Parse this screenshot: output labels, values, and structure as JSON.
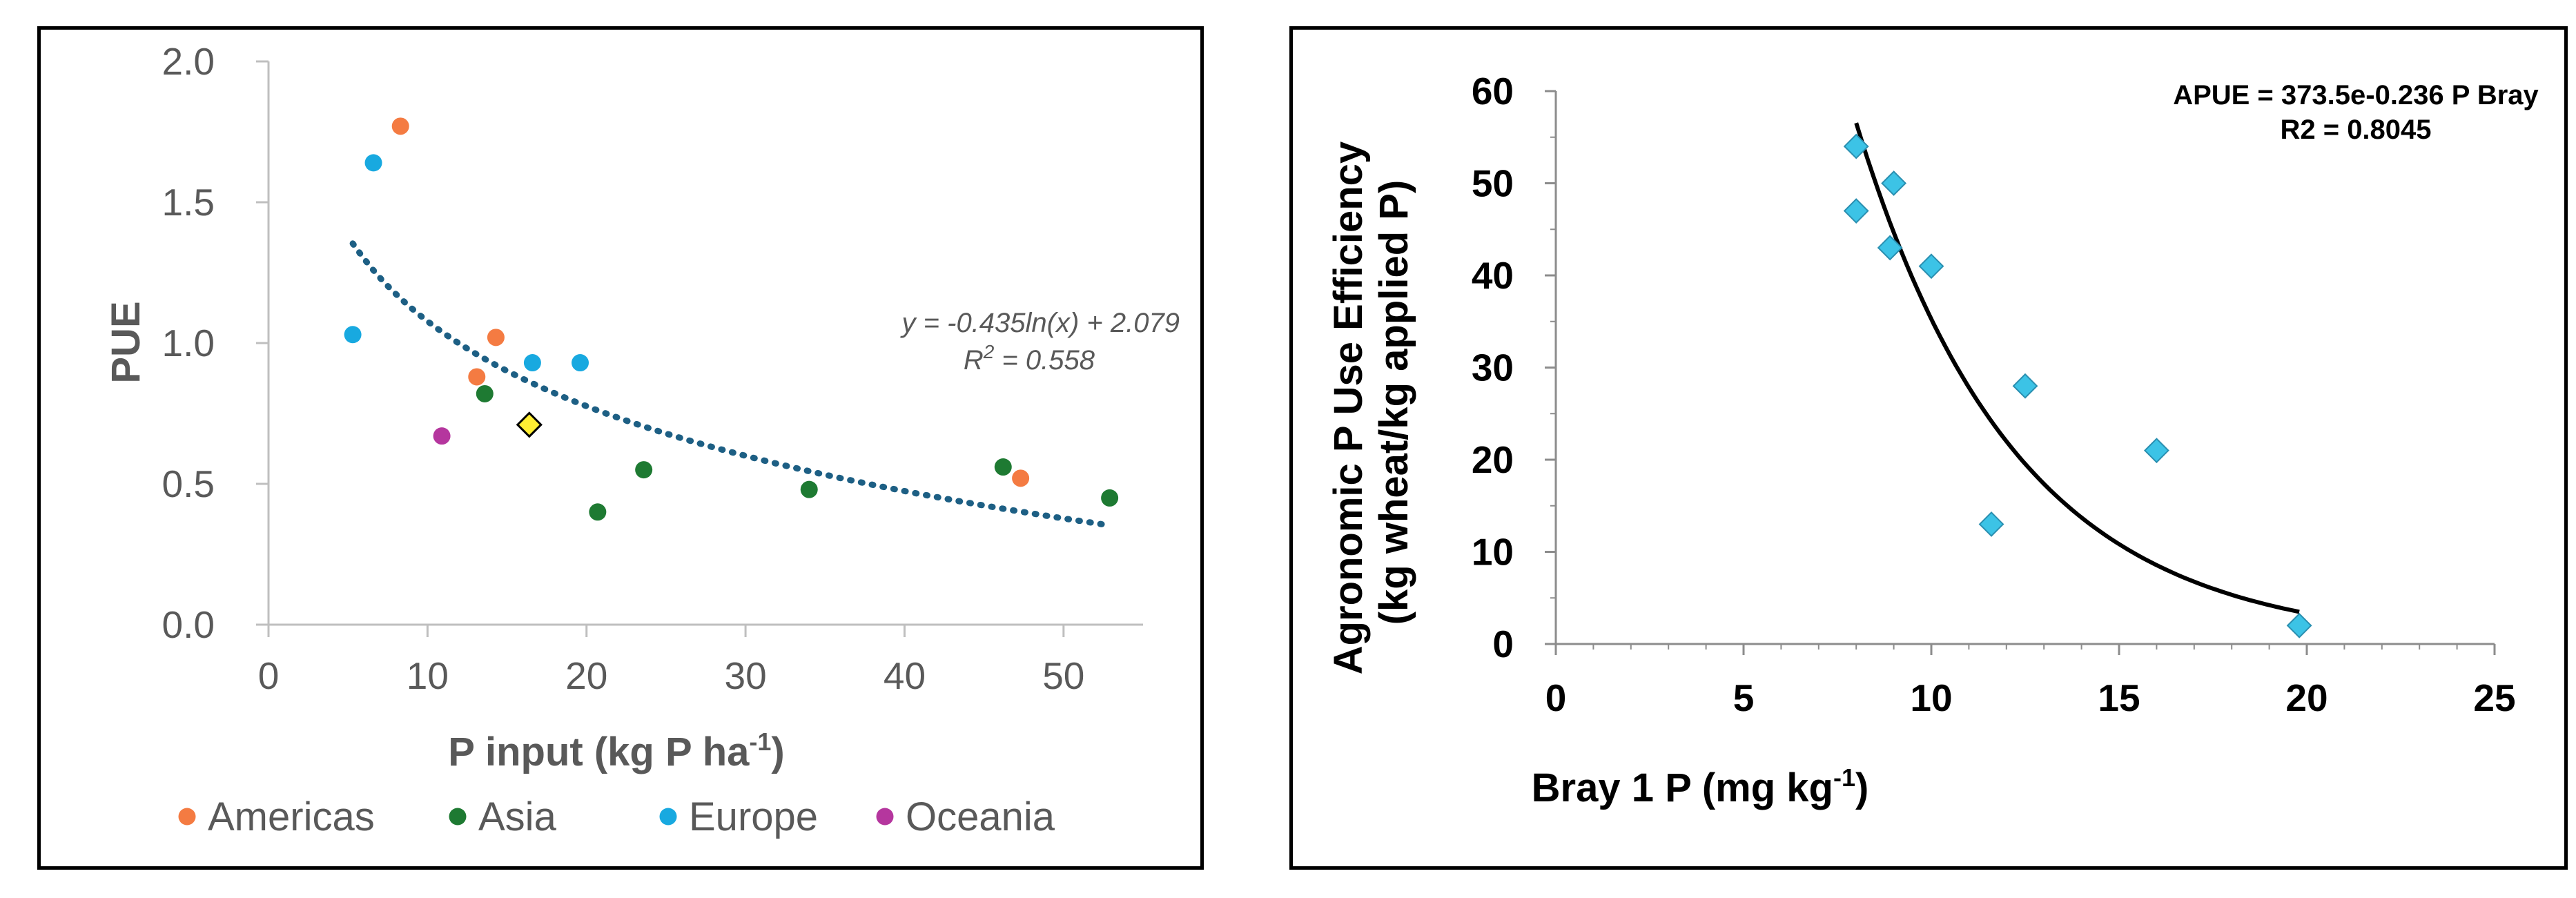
{
  "chart_data": [
    {
      "type": "scatter",
      "title": "",
      "xlabel": "P input (kg P ha",
      "xlabel_sup": "-1",
      "xlabel_tail": ")",
      "ylabel": "PUE",
      "xlim": [
        0,
        55
      ],
      "ylim": [
        0,
        2.0
      ],
      "x_ticks": [
        0,
        10,
        20,
        30,
        40,
        50
      ],
      "y_ticks": [
        0.0,
        0.5,
        1.0,
        1.5,
        2.0
      ],
      "x_tick_labels": [
        "0",
        "10",
        "20",
        "30",
        "40",
        "50"
      ],
      "y_tick_labels": [
        "0.0",
        "0.5",
        "1.0",
        "1.5",
        "2.0"
      ],
      "grid": false,
      "legend_position": "bottom",
      "series": [
        {
          "name": "Americas",
          "color": "#f47b42",
          "marker": "circle",
          "points": [
            [
              8.3,
              1.77
            ],
            [
              13.1,
              0.88
            ],
            [
              14.3,
              1.02
            ],
            [
              47.3,
              0.52
            ]
          ]
        },
        {
          "name": "Asia",
          "color": "#1e7a32",
          "marker": "circle",
          "points": [
            [
              13.6,
              0.82
            ],
            [
              20.7,
              0.4
            ],
            [
              23.6,
              0.55
            ],
            [
              34.0,
              0.48
            ],
            [
              46.2,
              0.56
            ],
            [
              52.9,
              0.45
            ]
          ]
        },
        {
          "name": "Europe",
          "color": "#18a9e0",
          "marker": "circle",
          "points": [
            [
              5.3,
              1.03
            ],
            [
              6.6,
              1.64
            ],
            [
              16.6,
              0.93
            ],
            [
              19.6,
              0.93
            ]
          ]
        },
        {
          "name": "Oceania",
          "color": "#b5369e",
          "marker": "circle",
          "points": [
            [
              10.9,
              0.67
            ]
          ]
        },
        {
          "color": "#ffee33",
          "marker": "diamond",
          "points": [
            [
              16.4,
              0.71
            ]
          ]
        }
      ],
      "trendline": {
        "type": "log",
        "a": -0.435,
        "b": 2.079,
        "x_range": [
          5.3,
          52.9
        ],
        "color": "#1d5f84",
        "style": "dotted"
      },
      "annotations": [
        "y = -0.435ln(x) + 2.079",
        "R",
        "2",
        " = 0.558"
      ]
    },
    {
      "type": "scatter",
      "title": "",
      "xlabel": "Bray 1 P (mg kg",
      "xlabel_sup": "-1",
      "xlabel_tail": ")",
      "ylabel": "Agronomic P Use Efficiency",
      "ylabel_line2": "(kg wheat/kg applied P)",
      "xlim": [
        0,
        25
      ],
      "ylim": [
        0,
        60
      ],
      "x_ticks": [
        0,
        5,
        10,
        15,
        20,
        25
      ],
      "y_ticks": [
        0,
        10,
        20,
        30,
        40,
        50,
        60
      ],
      "x_tick_labels": [
        "0",
        "5",
        "10",
        "15",
        "20",
        "25"
      ],
      "y_tick_labels": [
        "0",
        "10",
        "20",
        "30",
        "40",
        "50",
        "60"
      ],
      "grid": false,
      "series": [
        {
          "color": "#3cc3e6",
          "marker": "diamond",
          "points": [
            [
              8.0,
              54
            ],
            [
              8.0,
              47
            ],
            [
              8.9,
              43
            ],
            [
              9.0,
              50
            ],
            [
              10.0,
              41
            ],
            [
              11.6,
              13
            ],
            [
              12.5,
              28
            ],
            [
              16.0,
              21
            ],
            [
              19.8,
              2
            ]
          ]
        }
      ],
      "trendline": {
        "type": "exp",
        "a": 373.5,
        "b": -0.236,
        "x_range": [
          8.0,
          19.8
        ],
        "color": "#000000",
        "style": "solid"
      },
      "annotations": [
        "APUE = 373.5e-0.236 P Bray",
        "R2 = 0.8045"
      ]
    }
  ]
}
